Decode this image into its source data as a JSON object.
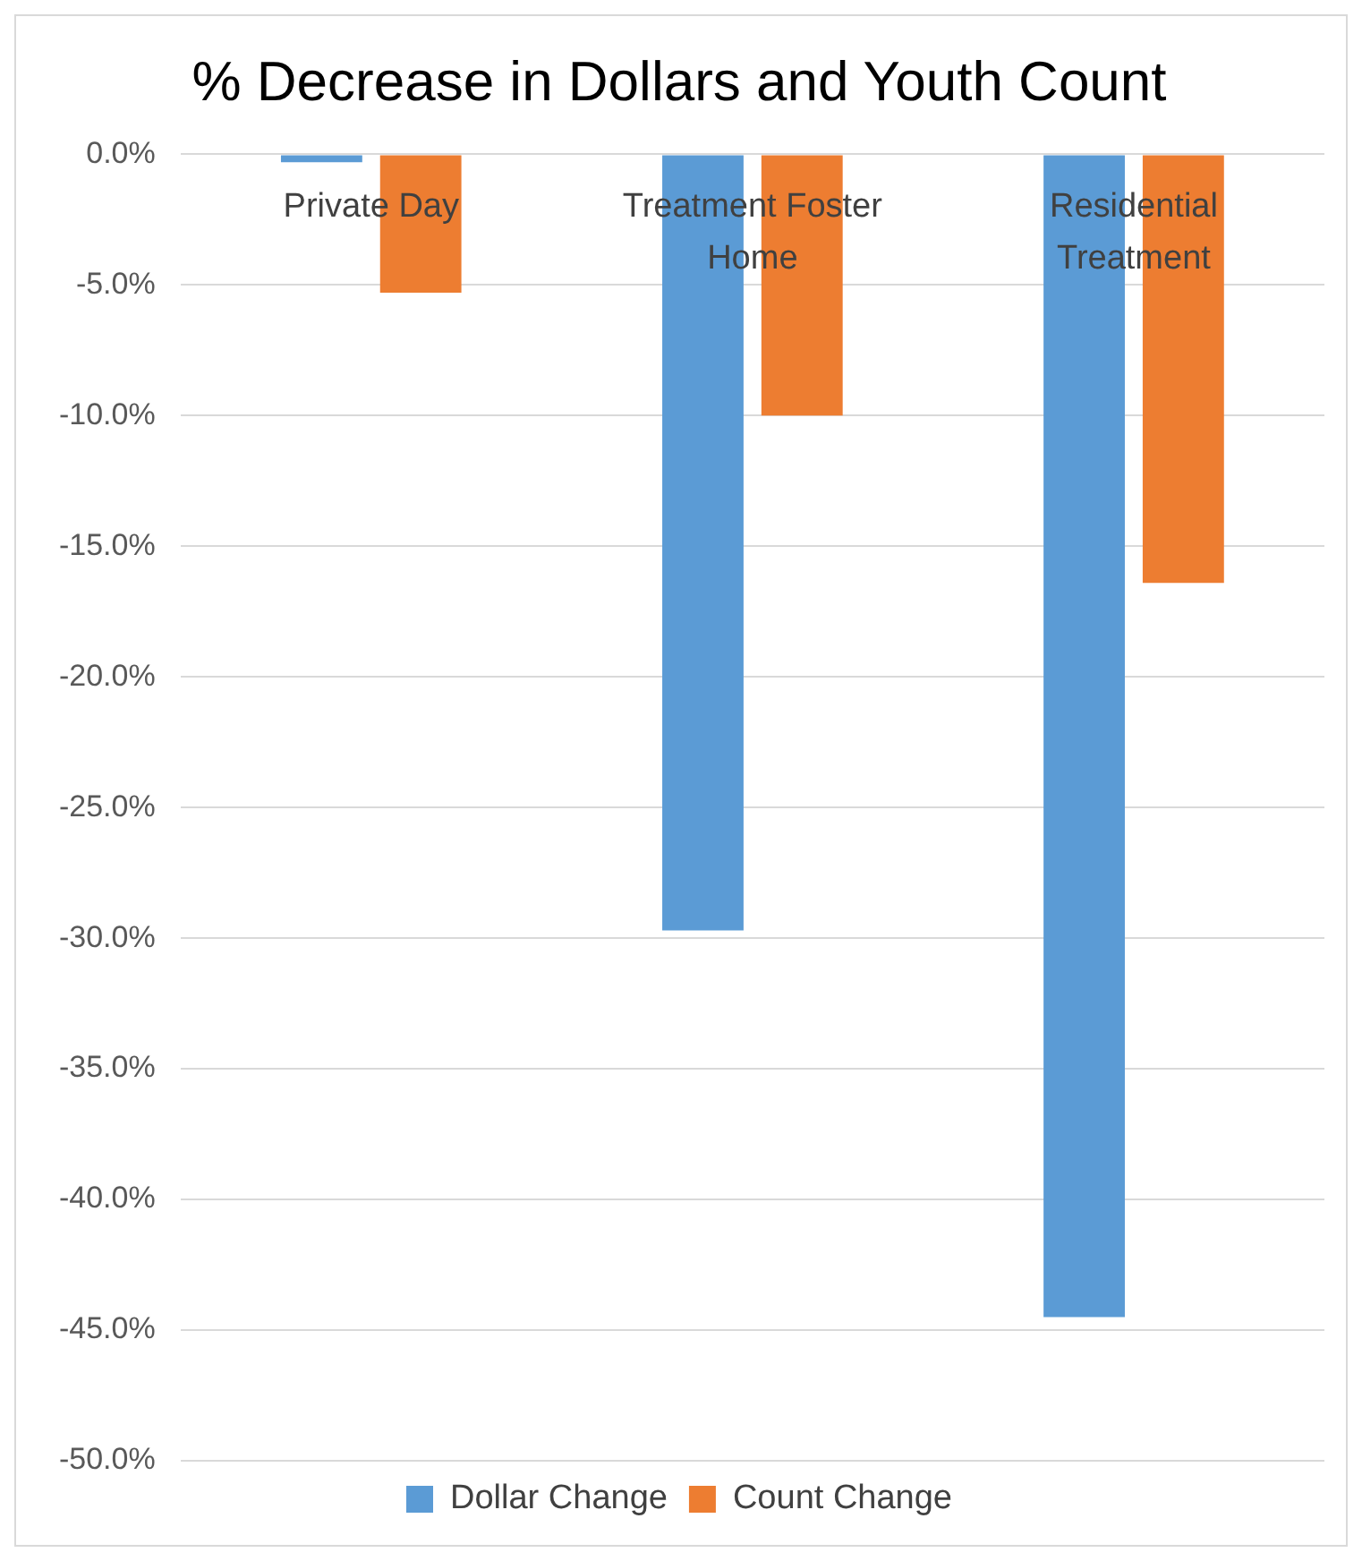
{
  "chart_data": {
    "type": "bar",
    "title": "% Decrease in Dollars and Youth Count",
    "categories": [
      "Private Day",
      "Treatment Foster Home",
      "Residential Treatment"
    ],
    "series": [
      {
        "name": "Dollar Change",
        "color": "#5b9bd5",
        "values": [
          -0.3,
          -29.7,
          -44.5
        ]
      },
      {
        "name": "Count Change",
        "color": "#ed7d31",
        "values": [
          -5.3,
          -10.0,
          -16.4
        ]
      }
    ],
    "ylim": [
      -50,
      0
    ],
    "yticks": [
      {
        "value": -50,
        "label": "-50.0%"
      },
      {
        "value": -45,
        "label": "-45.0%"
      },
      {
        "value": -40,
        "label": "-40.0%"
      },
      {
        "value": -35,
        "label": "-35.0%"
      },
      {
        "value": -30,
        "label": "-30.0%"
      },
      {
        "value": -25,
        "label": "-25.0%"
      },
      {
        "value": -20,
        "label": "-20.0%"
      },
      {
        "value": -15,
        "label": "-15.0%"
      },
      {
        "value": -10,
        "label": "-10.0%"
      },
      {
        "value": -5,
        "label": "-5.0%"
      },
      {
        "value": 0,
        "label": "0.0%"
      }
    ],
    "grid": "y",
    "legend": "bottom"
  }
}
